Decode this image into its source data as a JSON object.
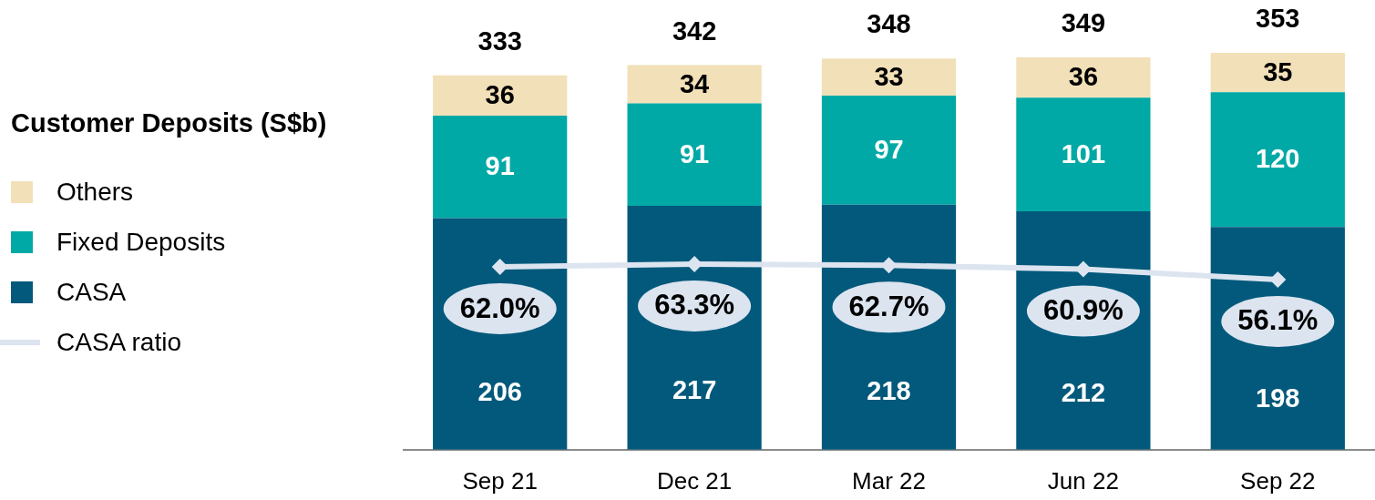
{
  "chart_data": {
    "type": "bar",
    "categories": [
      "Sep 21",
      "Dec 21",
      "Mar 22",
      "Jun 22",
      "Sep 22"
    ],
    "legend_title": "Customer Deposits (S$b)",
    "series": [
      {
        "name": "CASA",
        "color": "#02597b",
        "values": [
          206,
          217,
          218,
          212,
          198
        ]
      },
      {
        "name": "Fixed Deposits",
        "color": "#00a9a6",
        "values": [
          91,
          91,
          97,
          101,
          120
        ]
      },
      {
        "name": "Others",
        "color": "#f2e0b8",
        "values": [
          36,
          34,
          33,
          36,
          35
        ]
      },
      {
        "name": "CASA ratio",
        "type": "line",
        "axis": "y2",
        "color": "#dce4f0",
        "values": [
          62.0,
          63.3,
          62.7,
          60.9,
          56.1
        ],
        "value_labels": [
          "62.0%",
          "63.3%",
          "62.7%",
          "60.9%",
          "56.1%"
        ]
      }
    ],
    "stacked": true,
    "totals": [
      "333",
      "342",
      "348",
      "349",
      "353"
    ],
    "data_labels": true,
    "y2lim": [
      -23,
      186
    ],
    "tick_labels": "x",
    "grid": false,
    "legend": "left",
    "marker": "diamond"
  }
}
